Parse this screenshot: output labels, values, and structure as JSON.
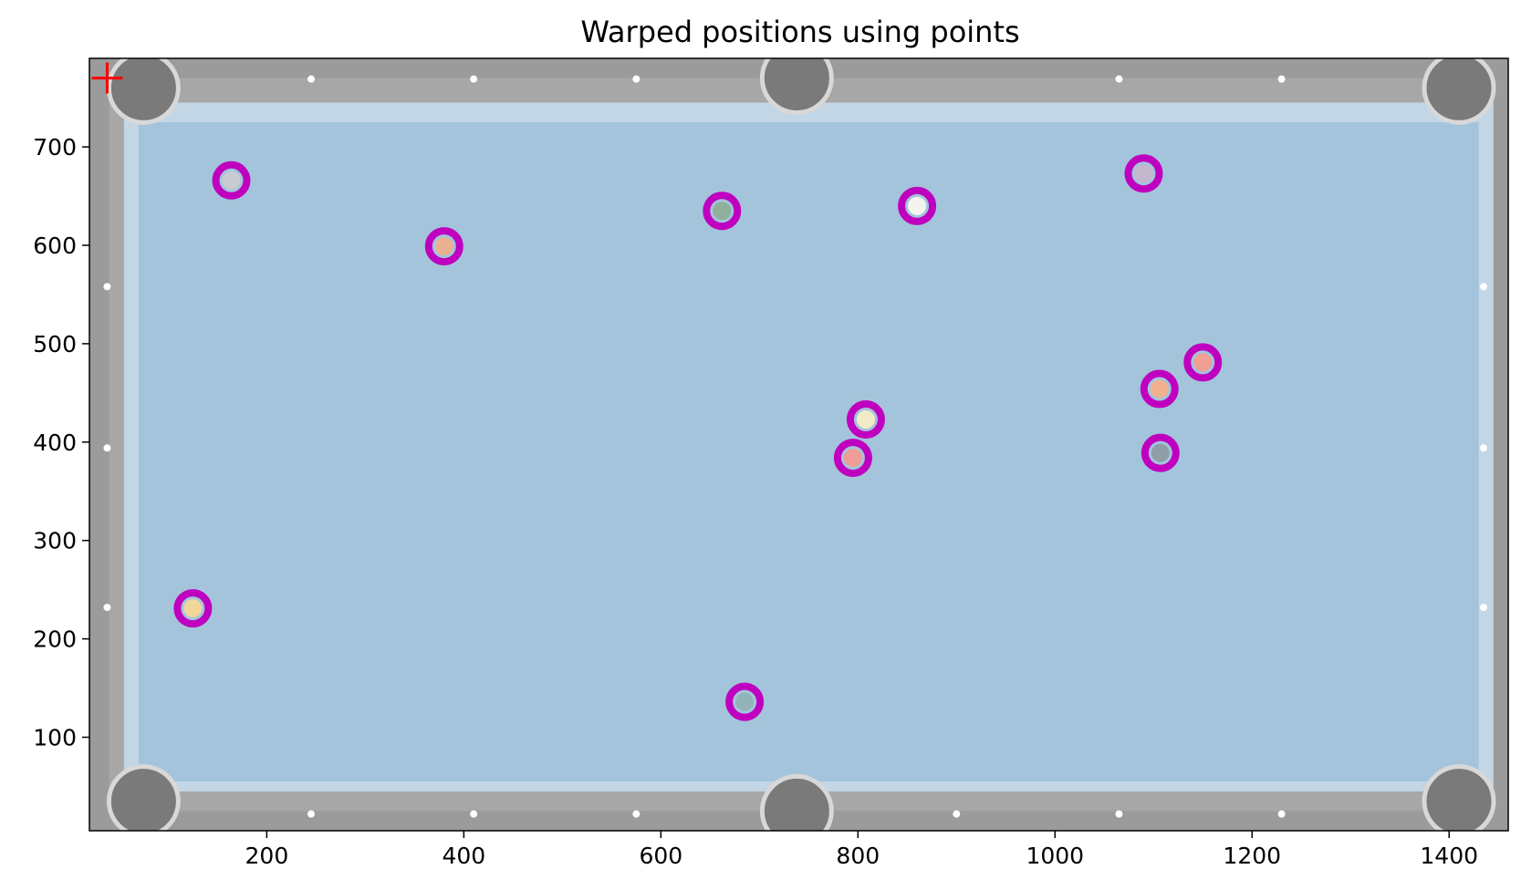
{
  "chart_data": {
    "type": "scatter",
    "title": "Warped positions using points",
    "xlabel": "",
    "ylabel": "",
    "xlim": [
      20,
      1460
    ],
    "ylim": [
      5,
      790
    ],
    "x_ticks": [
      200,
      400,
      600,
      800,
      1000,
      1200,
      1400
    ],
    "y_ticks": [
      100,
      200,
      300,
      400,
      500,
      600,
      700
    ],
    "grid": false,
    "background": "pool-table-top-view",
    "colors": {
      "marker": "#bf00bf",
      "origin_marker": "#ff0000",
      "cloth": "#a4c4dc",
      "rail": "#9b9b9b",
      "cushion_edge": "#c3d6e6",
      "pocket": "#7a7a7a"
    },
    "series": [
      {
        "marker": "ring",
        "points": [
          {
            "x": 164,
            "y": 666,
            "ball": "#c8ccd0"
          },
          {
            "x": 380,
            "y": 599,
            "ball": "#e9b190"
          },
          {
            "x": 662,
            "y": 635,
            "ball": "#8fb09a"
          },
          {
            "x": 860,
            "y": 640,
            "ball": "#f4f4ee"
          },
          {
            "x": 1090,
            "y": 673,
            "ball": "#c4b6cc"
          },
          {
            "x": 1150,
            "y": 481,
            "ball": "#ef9f93"
          },
          {
            "x": 1106,
            "y": 454,
            "ball": "#f1b18e"
          },
          {
            "x": 808,
            "y": 423,
            "ball": "#f1ecc6"
          },
          {
            "x": 795,
            "y": 384,
            "ball": "#ee9e96"
          },
          {
            "x": 1107,
            "y": 389,
            "ball": "#8f9ea6"
          },
          {
            "x": 125,
            "y": 231,
            "ball": "#f2d59a"
          },
          {
            "x": 685,
            "y": 136,
            "ball": "#92b3b8"
          }
        ]
      },
      {
        "marker": "plus",
        "points": [
          {
            "x": 38,
            "y": 770
          }
        ]
      }
    ]
  }
}
